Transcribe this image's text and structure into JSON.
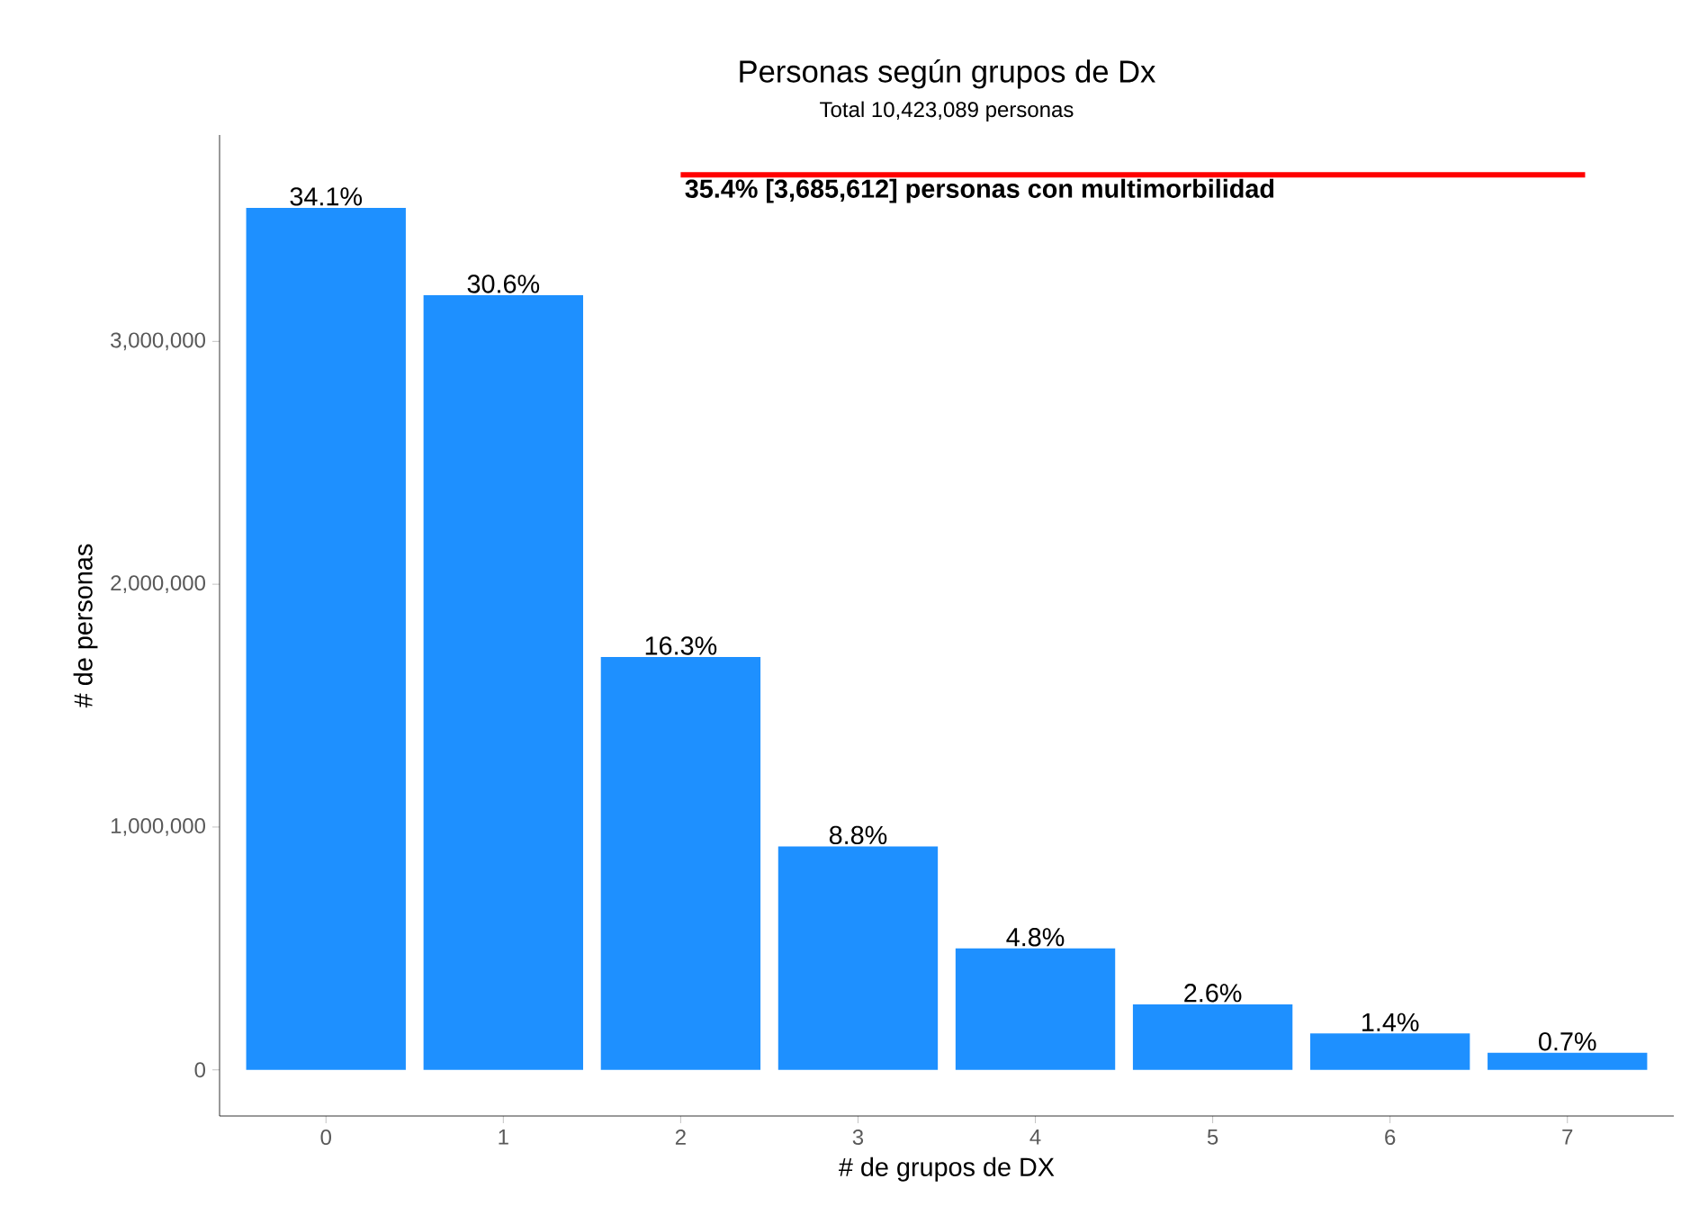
{
  "chart_data": {
    "type": "bar",
    "title": "Personas según grupos de Dx",
    "subtitle": "Total 10,423,089 personas",
    "xlabel": "# de grupos de DX",
    "ylabel": "# de personas",
    "categories": [
      "0",
      "1",
      "2",
      "3",
      "4",
      "5",
      "6",
      "7"
    ],
    "values": [
      3550000,
      3190000,
      1700000,
      920000,
      500000,
      270000,
      150000,
      70000
    ],
    "annotations": [
      {
        "text": "34.1%",
        "x": "0",
        "y": 3550000
      },
      {
        "text": "30.6%",
        "x": "1",
        "y": 3190000
      },
      {
        "text": "16.3%",
        "x": "2",
        "y": 1700000
      },
      {
        "text": "8.8%",
        "x": "3",
        "y": 920000
      },
      {
        "text": "4.8%",
        "x": "4",
        "y": 500000
      },
      {
        "text": "2.6%",
        "x": "5",
        "y": 270000
      },
      {
        "text": "1.4%",
        "x": "6",
        "y": 150000
      },
      {
        "text": "0.7%",
        "x": "7",
        "y": 70000
      }
    ],
    "color": "#1e90ff",
    "ylim": [
      -190000,
      3850000
    ],
    "yticks": [
      {
        "value": 0,
        "label": "0"
      },
      {
        "value": 1000000,
        "label": "1,000,000"
      },
      {
        "value": 2000000,
        "label": "2,000,000"
      },
      {
        "value": 3000000,
        "label": "3,000,000"
      }
    ],
    "ref_lines": [
      {
        "axis": "y",
        "value": 3685612,
        "label": "**35.4%  [3,685,612] personas con multimorbilidad**",
        "color": "#ff0000"
      }
    ],
    "grid": false
  }
}
